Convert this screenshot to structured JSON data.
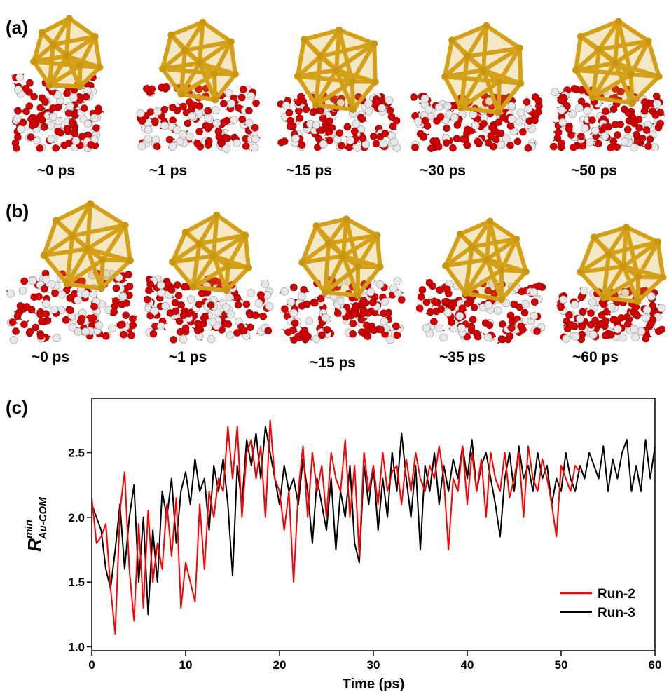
{
  "panel_a": {
    "label": "(a)",
    "captions": [
      "~0 ps",
      "~1 ps",
      "~15 ps",
      "~30 ps",
      "~50 ps"
    ]
  },
  "panel_b": {
    "label": "(b)",
    "captions": [
      "~0 ps",
      "~1 ps",
      "~15 ps",
      "~35 ps",
      "~60 ps"
    ]
  },
  "chart_data": {
    "type": "line",
    "panel_label": "(c)",
    "xlabel": "Time (ps)",
    "ylabel": {
      "main": "R",
      "sup": "min",
      "sub": "Au-COM"
    },
    "xlim": [
      0,
      60
    ],
    "xticks": [
      0,
      10,
      20,
      30,
      40,
      50,
      60
    ],
    "ylim": [
      0.97,
      2.92
    ],
    "yticks": [
      {
        "value": 1,
        "label": "1.0"
      },
      {
        "value": 1.5,
        "label": "1.5"
      },
      {
        "value": 2,
        "label": "2.0"
      },
      {
        "value": 2.5,
        "label": "2.5"
      }
    ],
    "legend": "lower right",
    "series": [
      {
        "name": "Run-2",
        "color": "#ff0000",
        "x": [
          0,
          0.5,
          1,
          1.5,
          2,
          2.5,
          3,
          3.5,
          4,
          4.5,
          5,
          5.5,
          6,
          6.5,
          7,
          7.5,
          8,
          8.5,
          9,
          9.5,
          10,
          10.5,
          11,
          11.5,
          12,
          12.5,
          13,
          13.5,
          14,
          14.5,
          15,
          15.5,
          16,
          16.5,
          17,
          17.5,
          18,
          18.5,
          19,
          19.5,
          20,
          20.5,
          21,
          21.5,
          22,
          22.5,
          23,
          23.5,
          24,
          24.5,
          25,
          25.5,
          26,
          26.5,
          27,
          27.5,
          28,
          28.5,
          29,
          29.5,
          30,
          30.5,
          31,
          31.5,
          32,
          32.5,
          33,
          33.5,
          34,
          34.5,
          35,
          35.5,
          36,
          36.5,
          37,
          37.5,
          38,
          38.5,
          39,
          39.5,
          40,
          40.5,
          41,
          41.5,
          42,
          42.5,
          43,
          43.5,
          44,
          44.5,
          45,
          45.5,
          46,
          46.5,
          47,
          47.5,
          48,
          48.5,
          49,
          49.5,
          50,
          50.5,
          51,
          51.5,
          52
        ],
        "values": [
          2.15,
          1.8,
          1.85,
          1.95,
          1.45,
          1.1,
          2.05,
          2.35,
          1.6,
          1.2,
          1.95,
          1.3,
          2.05,
          1.5,
          1.8,
          1.6,
          2.1,
          1.7,
          2.15,
          1.3,
          1.65,
          1.5,
          1.35,
          2.1,
          1.6,
          2.2,
          2.0,
          2.3,
          2.2,
          2.7,
          2.3,
          2.7,
          2.0,
          2.5,
          2.6,
          2.3,
          2.55,
          2.0,
          2.75,
          2.3,
          2.2,
          1.9,
          2.2,
          1.5,
          2.2,
          2.55,
          2.0,
          2.5,
          2.2,
          2.4,
          2.0,
          2.5,
          2.3,
          2.2,
          2.6,
          2.0,
          2.4,
          1.7,
          2.5,
          2.2,
          2.4,
          2.1,
          2.5,
          2.2,
          2.35,
          2.4,
          2.1,
          2.45,
          2.2,
          2.5,
          2.3,
          2.2,
          2.4,
          2.3,
          2.55,
          2.3,
          1.75,
          2.3,
          2.2,
          2.55,
          2.1,
          2.5,
          2.2,
          2.45,
          2.0,
          2.5,
          2.3,
          2.2,
          2.5,
          2.15,
          2.3,
          2.5,
          2.0,
          2.55,
          2.3,
          2.2,
          2.45,
          2.3,
          2.1,
          1.85,
          2.4,
          2.3,
          2.2,
          2.4,
          2.35
        ]
      },
      {
        "name": "Run-3",
        "color": "#000000",
        "x": [
          0,
          0.5,
          1,
          1.5,
          2,
          2.5,
          3,
          3.5,
          4,
          4.5,
          5,
          5.5,
          6,
          6.5,
          7,
          7.5,
          8,
          8.5,
          9,
          9.5,
          10,
          10.5,
          11,
          11.5,
          12,
          12.5,
          13,
          13.5,
          14,
          14.5,
          15,
          15.5,
          16,
          16.5,
          17,
          17.5,
          18,
          18.5,
          19,
          19.5,
          20,
          20.5,
          21,
          21.5,
          22,
          22.5,
          23,
          23.5,
          24,
          24.5,
          25,
          25.5,
          26,
          26.5,
          27,
          27.5,
          28,
          28.5,
          29,
          29.5,
          30,
          30.5,
          31,
          31.5,
          32,
          32.5,
          33,
          33.5,
          34,
          34.5,
          35,
          35.5,
          36,
          36.5,
          37,
          37.5,
          38,
          38.5,
          39,
          39.5,
          40,
          40.5,
          41,
          41.5,
          42,
          42.5,
          43,
          43.5,
          44,
          44.5,
          45,
          45.5,
          46,
          46.5,
          47,
          47.5,
          48,
          48.5,
          49,
          49.5,
          50,
          50.5,
          51,
          51.5,
          52,
          52.5,
          53,
          53.5,
          54,
          54.5,
          55,
          55.5,
          56,
          56.5,
          57,
          57.5,
          58,
          58.5,
          59,
          59.5,
          60
        ],
        "values": [
          2.1,
          2.0,
          1.9,
          1.6,
          1.45,
          1.75,
          2.1,
          1.6,
          2.0,
          2.25,
          1.5,
          2.0,
          1.25,
          1.9,
          1.5,
          2.2,
          2.0,
          2.3,
          1.8,
          2.2,
          2.35,
          2.1,
          2.45,
          2.2,
          2.3,
          1.9,
          2.4,
          2.2,
          2.45,
          2.1,
          1.55,
          2.4,
          2.1,
          2.6,
          2.4,
          2.65,
          2.3,
          2.7,
          2.5,
          2.3,
          2.1,
          2.4,
          2.2,
          2.3,
          2.1,
          2.45,
          2.2,
          1.8,
          2.3,
          2.1,
          1.9,
          2.3,
          1.75,
          2.2,
          2.0,
          2.4,
          1.8,
          1.65,
          2.4,
          2.1,
          2.4,
          1.9,
          2.3,
          2.0,
          2.5,
          2.2,
          2.65,
          2.3,
          2.0,
          2.4,
          1.75,
          2.4,
          2.2,
          2.5,
          2.1,
          2.4,
          2.2,
          2.45,
          2.3,
          2.55,
          2.3,
          2.6,
          2.2,
          2.4,
          2.5,
          2.3,
          2.1,
          1.85,
          2.3,
          2.5,
          2.2,
          2.55,
          2.3,
          2.4,
          2.2,
          2.5,
          2.3,
          2.4,
          2.1,
          2.3,
          2.2,
          2.5,
          2.3,
          2.2,
          2.4,
          2.3,
          2.5,
          2.4,
          2.3,
          2.55,
          2.2,
          2.45,
          2.3,
          2.5,
          2.6,
          2.2,
          2.4,
          2.2,
          2.6,
          2.3,
          2.55
        ]
      }
    ]
  }
}
